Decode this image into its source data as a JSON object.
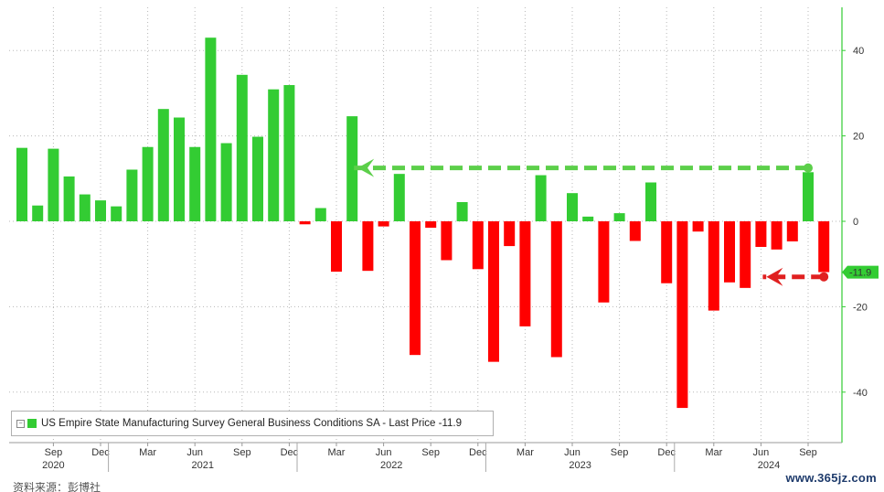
{
  "chart_data": {
    "type": "bar",
    "title": "US Empire State Manufacturing Survey General Business Conditions SA",
    "legend_label": "US Empire State Manufacturing Survey General Business Conditions SA - Last Price -11.9",
    "last_value_label": "-11.9",
    "last_value": -11.9,
    "ylim": [
      -52,
      50
    ],
    "yticks": [
      40,
      20,
      0,
      -20,
      -40
    ],
    "grid": true,
    "legend_position": "bottom-left",
    "y_axis_position": "right",
    "categories": [
      "2020-07",
      "2020-08",
      "2020-09",
      "2020-10",
      "2020-11",
      "2020-12",
      "2021-01",
      "2021-02",
      "2021-03",
      "2021-04",
      "2021-05",
      "2021-06",
      "2021-07",
      "2021-08",
      "2021-09",
      "2021-10",
      "2021-11",
      "2021-12",
      "2022-01",
      "2022-02",
      "2022-03",
      "2022-04",
      "2022-05",
      "2022-06",
      "2022-07",
      "2022-08",
      "2022-09",
      "2022-10",
      "2022-11",
      "2022-12",
      "2023-01",
      "2023-02",
      "2023-03",
      "2023-04",
      "2023-05",
      "2023-06",
      "2023-07",
      "2023-08",
      "2023-09",
      "2023-10",
      "2023-11",
      "2023-12",
      "2024-01",
      "2024-02",
      "2024-03",
      "2024-04",
      "2024-05",
      "2024-06",
      "2024-07",
      "2024-08",
      "2024-09",
      "2024-10"
    ],
    "values": [
      17.2,
      3.7,
      17.0,
      10.5,
      6.3,
      4.9,
      3.5,
      12.1,
      17.4,
      26.3,
      24.3,
      17.4,
      43.0,
      18.3,
      34.3,
      19.8,
      30.9,
      31.9,
      -0.7,
      3.1,
      -11.8,
      24.6,
      -11.6,
      -1.2,
      11.1,
      -31.3,
      -1.5,
      -9.1,
      4.5,
      -11.2,
      -32.9,
      -5.8,
      -24.6,
      10.8,
      -31.8,
      6.6,
      1.1,
      -19.0,
      1.9,
      -4.6,
      9.1,
      -14.5,
      -43.7,
      -2.4,
      -20.9,
      -14.3,
      -15.6,
      -6.0,
      -6.6,
      -4.7,
      11.5,
      -11.9
    ],
    "x_month_labels": [
      {
        "index": 2,
        "label": "Sep"
      },
      {
        "index": 5,
        "label": "Dec"
      },
      {
        "index": 8,
        "label": "Mar"
      },
      {
        "index": 11,
        "label": "Jun"
      },
      {
        "index": 14,
        "label": "Sep"
      },
      {
        "index": 17,
        "label": "Dec"
      },
      {
        "index": 20,
        "label": "Mar"
      },
      {
        "index": 23,
        "label": "Jun"
      },
      {
        "index": 26,
        "label": "Sep"
      },
      {
        "index": 29,
        "label": "Dec"
      },
      {
        "index": 32,
        "label": "Mar"
      },
      {
        "index": 35,
        "label": "Jun"
      },
      {
        "index": 38,
        "label": "Sep"
      },
      {
        "index": 41,
        "label": "Dec"
      },
      {
        "index": 44,
        "label": "Mar"
      },
      {
        "index": 47,
        "label": "Jun"
      },
      {
        "index": 50,
        "label": "Sep"
      }
    ],
    "x_year_labels": [
      {
        "index": 2,
        "label": "2020"
      },
      {
        "index": 11.5,
        "label": "2021"
      },
      {
        "index": 23.5,
        "label": "2022"
      },
      {
        "index": 35.5,
        "label": "2023"
      },
      {
        "index": 47.5,
        "label": "2024"
      }
    ],
    "year_dividers": [
      5.5,
      17.5,
      29.5,
      41.5
    ],
    "annotations": [
      {
        "type": "arrow",
        "color": "green",
        "from": {
          "x_index": 50,
          "y": 12.5
        },
        "to": {
          "x_index": 21,
          "y": 12.5
        }
      },
      {
        "type": "arrow",
        "color": "red",
        "from": {
          "x_index": 51,
          "y": -13.0
        },
        "to": {
          "x_index": 47,
          "y": -13.0
        }
      }
    ],
    "colors": {
      "positive": "#33cc33",
      "negative": "#ff0000",
      "axis": "#33cc33",
      "arrow_green": "#5ccf4a",
      "arrow_red": "#e02020",
      "last_price_tag": "#33cc33"
    }
  },
  "source_note": "资料来源：彭博社",
  "watermark": "www.365jz.com"
}
